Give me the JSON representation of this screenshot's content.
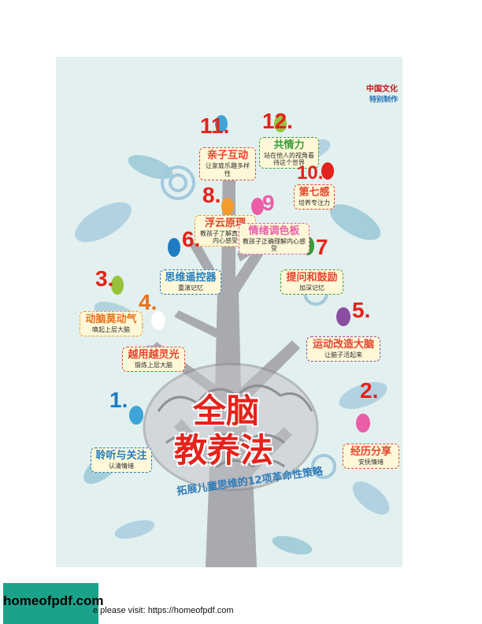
{
  "publisher": {
    "line1": "中国文化",
    "line2": "特别制作"
  },
  "title": {
    "line1": "全脑",
    "line2": "教养法"
  },
  "subtitle": "拓展儿童思维的12项革命性策略",
  "methods": [
    {
      "num": "1.",
      "title": "聆听与关注",
      "desc": "认清情绪",
      "color": "#1f7cc2"
    },
    {
      "num": "2.",
      "title": "经历分享",
      "desc": "安抚情绪",
      "color": "#e5221b"
    },
    {
      "num": "3.",
      "title": "动脑莫动气",
      "desc": "唤起上层大脑",
      "color": "#e5221b"
    },
    {
      "num": "4.",
      "title": "越用越灵光",
      "desc": "锻炼上层大脑",
      "color": "#e8701c"
    },
    {
      "num": "5.",
      "title": "运动改造大脑",
      "desc": "让脑子活起来",
      "color": "#e5221b"
    },
    {
      "num": "6.",
      "title": "思维遥控器",
      "desc": "重演记忆",
      "color": "#e5221b"
    },
    {
      "num": "7",
      "title": "提问和鼓励",
      "desc": "加深记忆",
      "color": "#e5221b"
    },
    {
      "num": "8.",
      "title": "浮云原理",
      "desc": "教孩子了解真实的内心感受",
      "color": "#e5221b"
    },
    {
      "num": "9",
      "title": "情绪调色板",
      "desc": "教孩子正确理解内心感受",
      "color": "#ea5ea8"
    },
    {
      "num": "10.",
      "title": "第七感",
      "desc": "培养专注力",
      "color": "#e5221b"
    },
    {
      "num": "11.",
      "title": "亲子互动",
      "desc": "让家庭乐趣多样性",
      "color": "#e5221b"
    },
    {
      "num": "12.",
      "title": "共情力",
      "desc": "站在他人的视角看待这个世界",
      "color": "#e5221b"
    }
  ],
  "badge": "homeofpdf.com",
  "footer": "e please visit: https://homeofpdf.com",
  "colors": {
    "background": "#e2f0ef",
    "tree": "#a9a9b0",
    "accent_red": "#e5221b",
    "accent_blue": "#2e7bb8",
    "card": "#fff8d8",
    "badge": "#1aa38a"
  }
}
